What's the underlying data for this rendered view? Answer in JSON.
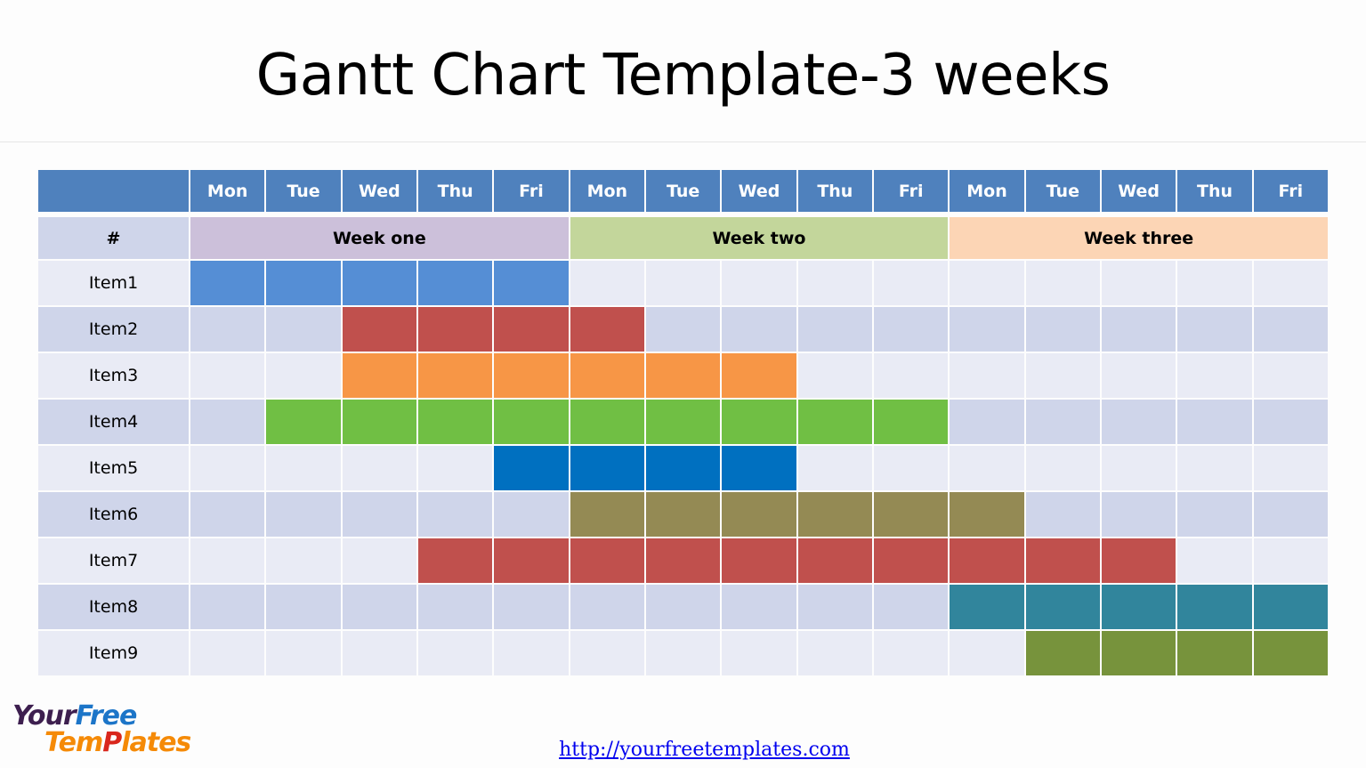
{
  "title": "Gantt Chart Template-3 weeks",
  "link": "http://yourfreetemplates.com",
  "logo": {
    "line1a": "Your",
    "line1b": "Free",
    "line2a": "Tem",
    "line2b": "P",
    "line2c": "lates"
  },
  "colors": {
    "header": "#4f81bd",
    "row_odd": "#e9ebf5",
    "row_even": "#cfd5ea",
    "label_odd": "#e9ebf5",
    "label_even": "#cfd5ea"
  },
  "chart_data": {
    "type": "gantt",
    "title": "Gantt Chart Template-3 weeks",
    "corner_label": "#",
    "days": [
      "Mon",
      "Tue",
      "Wed",
      "Thu",
      "Fri",
      "Mon",
      "Tue",
      "Wed",
      "Thu",
      "Fri",
      "Mon",
      "Tue",
      "Wed",
      "Thu",
      "Fri"
    ],
    "weeks": [
      {
        "label": "Week one",
        "color": "#ccc0da"
      },
      {
        "label": "Week two",
        "color": "#c3d69b"
      },
      {
        "label": "Week three",
        "color": "#fcd5b5"
      }
    ],
    "tasks": [
      {
        "name": "Item1",
        "start": "Week one Mon",
        "end": "Week one Fri",
        "start_day": 1,
        "end_day": 5,
        "color": "#558ed5"
      },
      {
        "name": "Item2",
        "start": "Week one Wed",
        "end": "Week two Mon",
        "start_day": 3,
        "end_day": 6,
        "color": "#c0504d"
      },
      {
        "name": "Item3",
        "start": "Week one Wed",
        "end": "Week two Wed",
        "start_day": 3,
        "end_day": 8,
        "color": "#f79646"
      },
      {
        "name": "Item4",
        "start": "Week one Tue",
        "end": "Week two Fri",
        "start_day": 2,
        "end_day": 10,
        "color": "#70bf44"
      },
      {
        "name": "Item5",
        "start": "Week one Fri",
        "end": "Week two Wed",
        "start_day": 5,
        "end_day": 8,
        "color": "#0070c0"
      },
      {
        "name": "Item6",
        "start": "Week two Mon",
        "end": "Week three Mon",
        "start_day": 6,
        "end_day": 11,
        "color": "#948a54"
      },
      {
        "name": "Item7",
        "start": "Week one Thu",
        "end": "Week three Wed",
        "start_day": 4,
        "end_day": 13,
        "color": "#c0504d"
      },
      {
        "name": "Item8",
        "start": "Week three Mon",
        "end": "Week three Fri",
        "start_day": 11,
        "end_day": 15,
        "color": "#31859c"
      },
      {
        "name": "Item9",
        "start": "Week three Tue",
        "end": "Week three Fri",
        "start_day": 12,
        "end_day": 15,
        "color": "#77933c"
      }
    ]
  }
}
